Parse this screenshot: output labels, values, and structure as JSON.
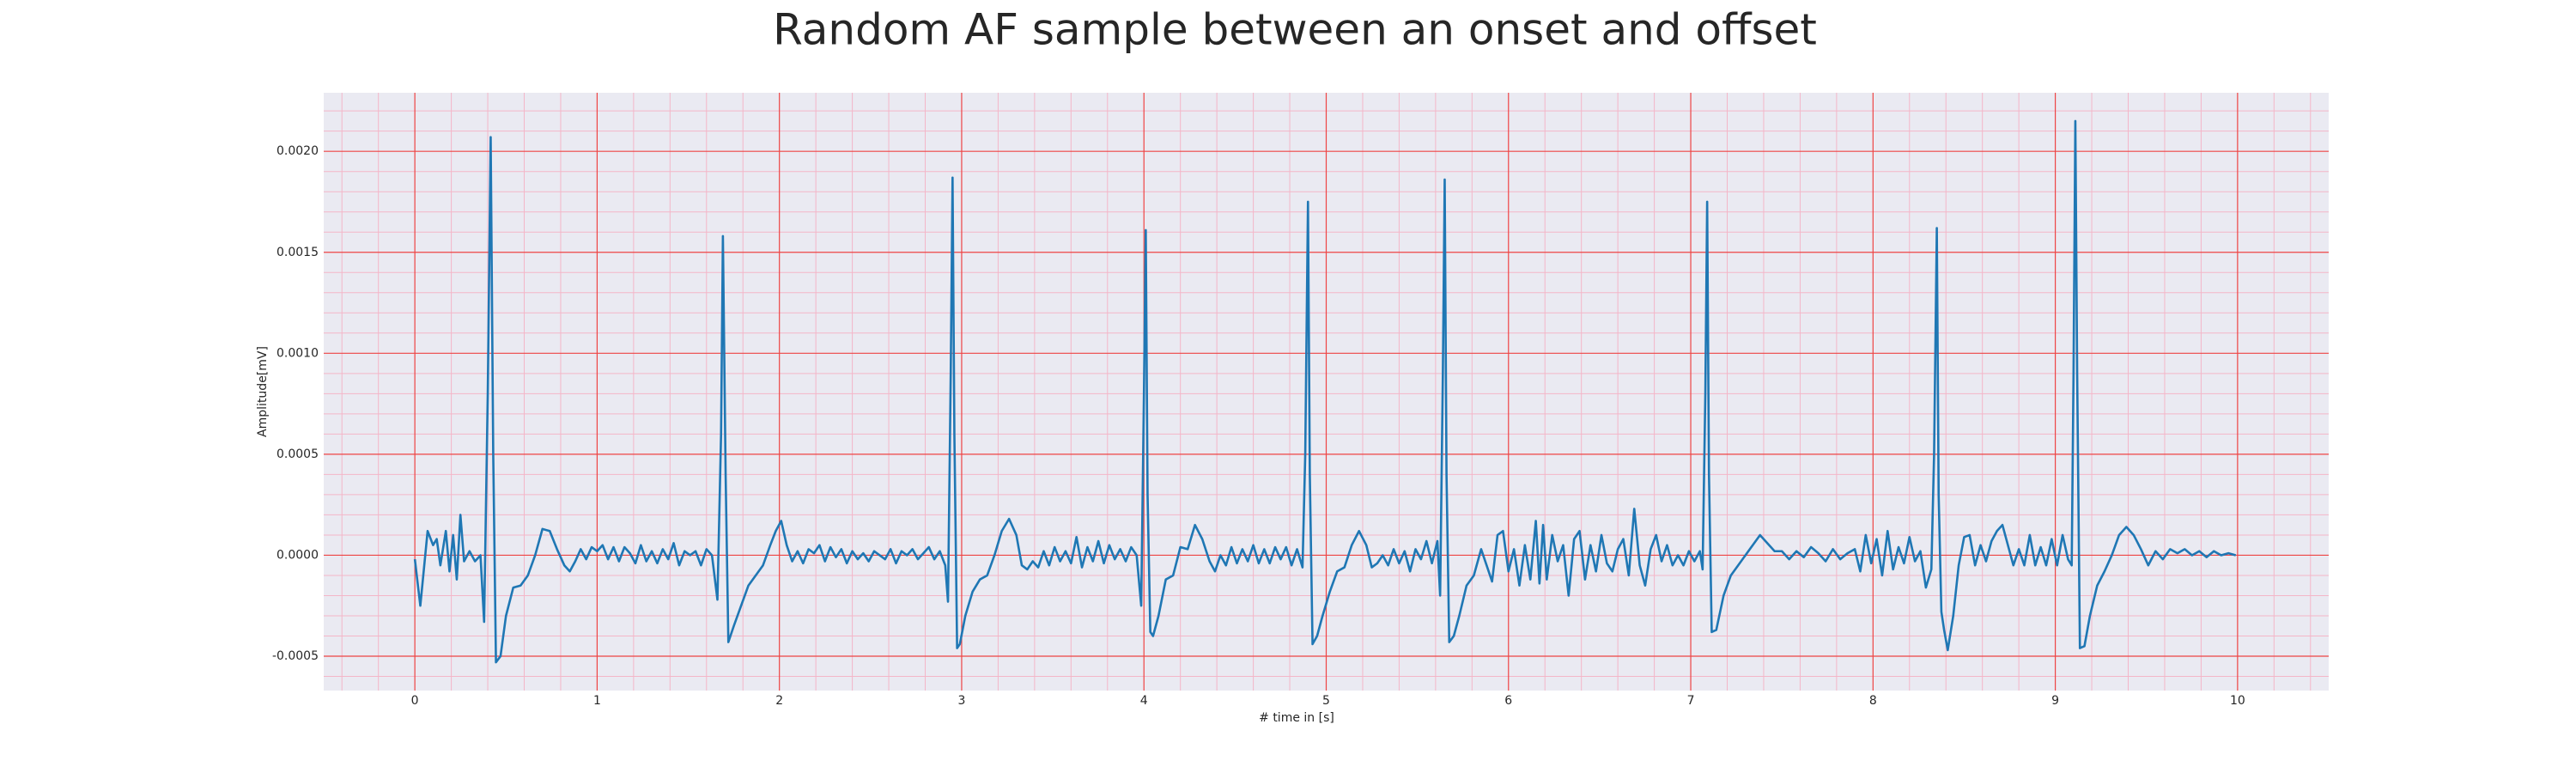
{
  "chart_data": {
    "type": "line",
    "title": "Random AF sample between an onset and offset",
    "xlabel": "# time in [s]",
    "ylabel": "Amplitude[mV]",
    "color": "#1f77b4",
    "grid": true,
    "xlim": [
      -0.5,
      10.5
    ],
    "ylim": [
      -0.00067,
      0.00229
    ],
    "xticks": [
      0,
      1,
      2,
      3,
      4,
      5,
      6,
      7,
      8,
      9,
      10
    ],
    "yticks": [
      {
        "value": -0.0005,
        "label": "-0.0005"
      },
      {
        "value": 0,
        "label": "0.0000"
      },
      {
        "value": 0.0005,
        "label": "0.0005"
      },
      {
        "value": 0.001,
        "label": "0.0010"
      },
      {
        "value": 0.0015,
        "label": "0.0015"
      },
      {
        "value": 0.002,
        "label": "0.0020"
      }
    ],
    "xticks_minor": [
      -0.4,
      -0.2,
      0.2,
      0.4,
      0.6,
      0.8,
      1.2,
      1.4,
      1.6,
      1.8,
      2.2,
      2.4,
      2.6,
      2.8,
      3.2,
      3.4,
      3.6,
      3.8,
      4.2,
      4.4,
      4.6,
      4.8,
      5.2,
      5.4,
      5.6,
      5.8,
      6.2,
      6.4,
      6.6,
      6.8,
      7.2,
      7.4,
      7.6,
      7.8,
      8.2,
      8.4,
      8.6,
      8.8,
      9.2,
      9.4,
      9.6,
      9.8,
      10.2,
      10.4
    ],
    "yticks_minor": [
      -0.0006,
      -0.0004,
      -0.0003,
      -0.0002,
      -0.0001,
      0.0001,
      0.0002,
      0.0003,
      0.0004,
      0.0006,
      0.0007,
      0.0008,
      0.0009,
      0.0011,
      0.0012,
      0.0013,
      0.0014,
      0.0016,
      0.0017,
      0.0018,
      0.0019,
      0.0021,
      0.0022
    ],
    "x": [
      0,
      0.03,
      0.07,
      0.1,
      0.12,
      0.14,
      0.17,
      0.19,
      0.21,
      0.23,
      0.25,
      0.27,
      0.3,
      0.33,
      0.36,
      0.38,
      0.4,
      0.416,
      0.43,
      0.445,
      0.47,
      0.5,
      0.54,
      0.58,
      0.62,
      0.66,
      0.7,
      0.74,
      0.78,
      0.82,
      0.85,
      0.88,
      0.91,
      0.94,
      0.97,
      1,
      1.03,
      1.06,
      1.09,
      1.12,
      1.15,
      1.18,
      1.21,
      1.24,
      1.27,
      1.3,
      1.33,
      1.36,
      1.39,
      1.42,
      1.45,
      1.48,
      1.51,
      1.54,
      1.57,
      1.6,
      1.63,
      1.66,
      1.68,
      1.69,
      1.705,
      1.72,
      1.75,
      1.79,
      1.83,
      1.87,
      1.91,
      1.95,
      1.98,
      2.01,
      2.04,
      2.07,
      2.1,
      2.13,
      2.16,
      2.19,
      2.22,
      2.25,
      2.28,
      2.31,
      2.34,
      2.37,
      2.4,
      2.43,
      2.46,
      2.49,
      2.52,
      2.55,
      2.58,
      2.61,
      2.64,
      2.67,
      2.7,
      2.73,
      2.76,
      2.79,
      2.82,
      2.85,
      2.88,
      2.91,
      2.925,
      2.94,
      2.95,
      2.96,
      2.975,
      2.99,
      3.02,
      3.06,
      3.1,
      3.14,
      3.18,
      3.22,
      3.26,
      3.3,
      3.33,
      3.36,
      3.39,
      3.42,
      3.45,
      3.48,
      3.51,
      3.54,
      3.57,
      3.6,
      3.63,
      3.66,
      3.69,
      3.72,
      3.75,
      3.78,
      3.81,
      3.84,
      3.87,
      3.9,
      3.93,
      3.96,
      3.985,
      4,
      4.01,
      4.02,
      4.035,
      4.05,
      4.08,
      4.12,
      4.16,
      4.2,
      4.24,
      4.28,
      4.32,
      4.36,
      4.39,
      4.42,
      4.45,
      4.48,
      4.51,
      4.54,
      4.57,
      4.6,
      4.63,
      4.66,
      4.69,
      4.72,
      4.75,
      4.78,
      4.81,
      4.84,
      4.87,
      4.885,
      4.9,
      4.91,
      4.925,
      4.95,
      4.98,
      5.02,
      5.06,
      5.1,
      5.14,
      5.18,
      5.22,
      5.25,
      5.28,
      5.31,
      5.34,
      5.37,
      5.4,
      5.43,
      5.46,
      5.49,
      5.52,
      5.55,
      5.58,
      5.61,
      5.625,
      5.64,
      5.65,
      5.66,
      5.675,
      5.7,
      5.73,
      5.77,
      5.81,
      5.85,
      5.88,
      5.91,
      5.94,
      5.97,
      6,
      6.03,
      6.06,
      6.09,
      6.12,
      6.15,
      6.17,
      6.19,
      6.21,
      6.24,
      6.27,
      6.3,
      6.33,
      6.36,
      6.39,
      6.42,
      6.45,
      6.48,
      6.51,
      6.54,
      6.57,
      6.6,
      6.63,
      6.66,
      6.69,
      6.72,
      6.75,
      6.78,
      6.81,
      6.84,
      6.87,
      6.9,
      6.93,
      6.96,
      6.99,
      7.02,
      7.05,
      7.065,
      7.08,
      7.09,
      7.1,
      7.115,
      7.14,
      7.18,
      7.22,
      7.26,
      7.3,
      7.34,
      7.38,
      7.42,
      7.46,
      7.5,
      7.54,
      7.58,
      7.62,
      7.66,
      7.7,
      7.74,
      7.78,
      7.82,
      7.86,
      7.9,
      7.93,
      7.96,
      7.99,
      8.02,
      8.05,
      8.08,
      8.11,
      8.14,
      8.17,
      8.2,
      8.23,
      8.26,
      8.29,
      8.32,
      8.335,
      8.35,
      8.36,
      8.375,
      8.39,
      8.41,
      8.44,
      8.47,
      8.5,
      8.53,
      8.56,
      8.59,
      8.62,
      8.65,
      8.68,
      8.71,
      8.74,
      8.77,
      8.8,
      8.83,
      8.86,
      8.89,
      8.92,
      8.95,
      8.98,
      9.01,
      9.04,
      9.07,
      9.09,
      9.1,
      9.11,
      9.12,
      9.135,
      9.16,
      9.19,
      9.23,
      9.27,
      9.31,
      9.35,
      9.39,
      9.43,
      9.47,
      9.51,
      9.55,
      9.59,
      9.63,
      9.67,
      9.71,
      9.75,
      9.79,
      9.83,
      9.87,
      9.91,
      9.95,
      9.99
    ],
    "values": [
      -2e-05,
      -0.00025,
      0.00012,
      5e-05,
      8e-05,
      -5e-05,
      0.00012,
      -8e-05,
      0.0001,
      -0.00012,
      0.0002,
      -3e-05,
      2e-05,
      -3e-05,
      0,
      -0.00033,
      0.0008,
      0.00207,
      0.0005,
      -0.00053,
      -0.0005,
      -0.0003,
      -0.00016,
      -0.00015,
      -0.0001,
      0,
      0.00013,
      0.00012,
      3e-05,
      -5e-05,
      -8e-05,
      -3e-05,
      3e-05,
      -2e-05,
      4e-05,
      2e-05,
      5e-05,
      -2e-05,
      4e-05,
      -3e-05,
      4e-05,
      1e-05,
      -4e-05,
      5e-05,
      -3e-05,
      2e-05,
      -4e-05,
      3e-05,
      -2e-05,
      6e-05,
      -5e-05,
      2e-05,
      0,
      2e-05,
      -5e-05,
      3e-05,
      0,
      -0.00022,
      0.0006,
      0.00158,
      0.0004,
      -0.00043,
      -0.00035,
      -0.00025,
      -0.00015,
      -0.0001,
      -5e-05,
      5e-05,
      0.00012,
      0.00017,
      5e-05,
      -3e-05,
      2e-05,
      -4e-05,
      3e-05,
      1e-05,
      5e-05,
      -3e-05,
      4e-05,
      -1e-05,
      3e-05,
      -4e-05,
      2e-05,
      -2e-05,
      1e-05,
      -3e-05,
      2e-05,
      0,
      -2e-05,
      3e-05,
      -4e-05,
      2e-05,
      0,
      3e-05,
      -2e-05,
      1e-05,
      4e-05,
      -2e-05,
      2e-05,
      -5e-05,
      -0.00023,
      0.0009,
      0.00187,
      0.0006,
      -0.00046,
      -0.00044,
      -0.0003,
      -0.00018,
      -0.00012,
      -0.0001,
      0,
      0.00012,
      0.00018,
      0.0001,
      -5e-05,
      -7e-05,
      -3e-05,
      -6e-05,
      2e-05,
      -5e-05,
      4e-05,
      -3e-05,
      2e-05,
      -4e-05,
      9e-05,
      -6e-05,
      4e-05,
      -3e-05,
      7e-05,
      -4e-05,
      5e-05,
      -2e-05,
      3e-05,
      -3e-05,
      4e-05,
      0,
      -0.00025,
      0.0008,
      0.00161,
      0.0003,
      -0.00038,
      -0.0004,
      -0.0003,
      -0.00012,
      -0.0001,
      4e-05,
      3e-05,
      0.00015,
      8e-05,
      -3e-05,
      -8e-05,
      0,
      -5e-05,
      4e-05,
      -4e-05,
      3e-05,
      -3e-05,
      5e-05,
      -4e-05,
      3e-05,
      -4e-05,
      4e-05,
      -2e-05,
      4e-05,
      -5e-05,
      3e-05,
      -6e-05,
      0.0005,
      0.00175,
      0.0004,
      -0.00044,
      -0.0004,
      -0.0003,
      -0.00018,
      -8e-05,
      -6e-05,
      5e-05,
      0.00012,
      5e-05,
      -6e-05,
      -4e-05,
      0,
      -5e-05,
      3e-05,
      -4e-05,
      2e-05,
      -8e-05,
      3e-05,
      -2e-05,
      7e-05,
      -4e-05,
      7e-05,
      -0.0002,
      0.0009,
      0.00186,
      0.0004,
      -0.00043,
      -0.0004,
      -0.0003,
      -0.00015,
      -0.0001,
      3e-05,
      -5e-05,
      -0.00013,
      0.0001,
      0.00012,
      -8e-05,
      3e-05,
      -0.00015,
      5e-05,
      -0.00012,
      0.00017,
      -0.00014,
      0.00015,
      -0.00012,
      0.0001,
      -3e-05,
      5e-05,
      -0.0002,
      8e-05,
      0.00012,
      -0.00012,
      5e-05,
      -8e-05,
      0.0001,
      -4e-05,
      -8e-05,
      3e-05,
      8e-05,
      -0.0001,
      0.00023,
      -5e-05,
      -0.00015,
      3e-05,
      0.0001,
      -3e-05,
      5e-05,
      -5e-05,
      0,
      -5e-05,
      2e-05,
      -3e-05,
      2e-05,
      -7e-05,
      0.0008,
      0.00175,
      0.0004,
      -0.00038,
      -0.00037,
      -0.0002,
      -0.0001,
      -5e-05,
      0,
      5e-05,
      0.0001,
      6e-05,
      2e-05,
      2e-05,
      -2e-05,
      2e-05,
      -1e-05,
      4e-05,
      1e-05,
      -3e-05,
      3e-05,
      -2e-05,
      1e-05,
      3e-05,
      -8e-05,
      0.0001,
      -4e-05,
      8e-05,
      -0.0001,
      0.00012,
      -7e-05,
      4e-05,
      -4e-05,
      9e-05,
      -3e-05,
      2e-05,
      -0.00016,
      -7e-05,
      0.0005,
      0.00162,
      0.0003,
      -0.00028,
      -0.00037,
      -0.00047,
      -0.0003,
      -5e-05,
      9e-05,
      0.0001,
      -5e-05,
      5e-05,
      -3e-05,
      7e-05,
      0.00012,
      0.00015,
      5e-05,
      -5e-05,
      3e-05,
      -5e-05,
      0.0001,
      -5e-05,
      4e-05,
      -5e-05,
      8e-05,
      -5e-05,
      0.0001,
      -2e-05,
      -5e-05,
      0.0009,
      0.00215,
      0.0009,
      -0.00046,
      -0.00045,
      -0.0003,
      -0.00015,
      -8e-05,
      0,
      0.0001,
      0.00014,
      0.0001,
      3e-05,
      -5e-05,
      2e-05,
      -2e-05,
      3e-05,
      1e-05,
      3e-05,
      0,
      2e-05,
      -1e-05,
      2e-05,
      0,
      1e-05,
      0
    ]
  }
}
